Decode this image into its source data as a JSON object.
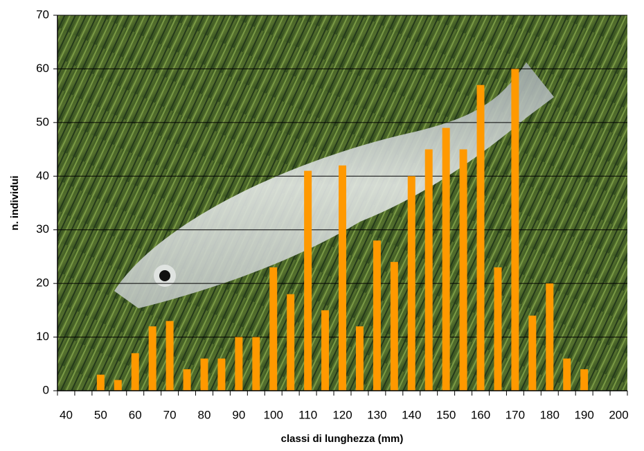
{
  "chart_data": {
    "type": "bar",
    "x_label": "classi di lunghezza (mm)",
    "y_label": "n. individui",
    "categories": [
      "40",
      null,
      "50",
      null,
      "60",
      null,
      "70",
      null,
      "80",
      null,
      "90",
      null,
      "100",
      null,
      "110",
      null,
      "120",
      null,
      "130",
      null,
      "140",
      null,
      "150",
      null,
      "160",
      null,
      "170",
      null,
      "180",
      null,
      "190",
      null,
      "200"
    ],
    "values": [
      0,
      0,
      3,
      2,
      7,
      12,
      13,
      4,
      6,
      6,
      10,
      10,
      23,
      18,
      41,
      15,
      42,
      12,
      28,
      24,
      40,
      45,
      49,
      45,
      57,
      23,
      60,
      14,
      20,
      6,
      4,
      0,
      0
    ],
    "color": "#ff9900",
    "ylim": [
      0,
      70
    ],
    "yticks": [
      0,
      10,
      20,
      30,
      40,
      50,
      60,
      70
    ],
    "grid": true
  }
}
